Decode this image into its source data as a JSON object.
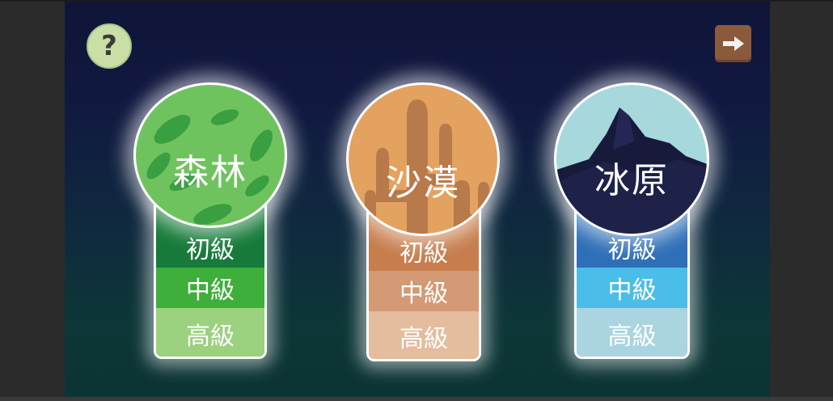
{
  "help": {
    "label": "?"
  },
  "next": {
    "icon": "arrow-right-icon"
  },
  "worlds": [
    {
      "name": "森林",
      "colors": {
        "circle": "#6fc35e",
        "leaf": "#3a9f40",
        "level1": "#177a3a",
        "level2": "#3daf3a",
        "level3": "#9bd17f"
      },
      "levels": [
        "初級",
        "中級",
        "高級"
      ]
    },
    {
      "name": "沙漠",
      "colors": {
        "circle": "#e3a25f",
        "cactus": "#b87a4a",
        "level1": "#c77d4d",
        "level2": "#d49975",
        "level3": "#e4bc9e"
      },
      "levels": [
        "初級",
        "中級",
        "高級"
      ]
    },
    {
      "name": "冰原",
      "colors": {
        "circle": "#a7d8dc",
        "mountain": "#181a3c",
        "level1": "#2f6fb8",
        "level2": "#4bbde9",
        "level3": "#a9d4e0"
      },
      "levels": [
        "初級",
        "中級",
        "高級"
      ]
    }
  ]
}
